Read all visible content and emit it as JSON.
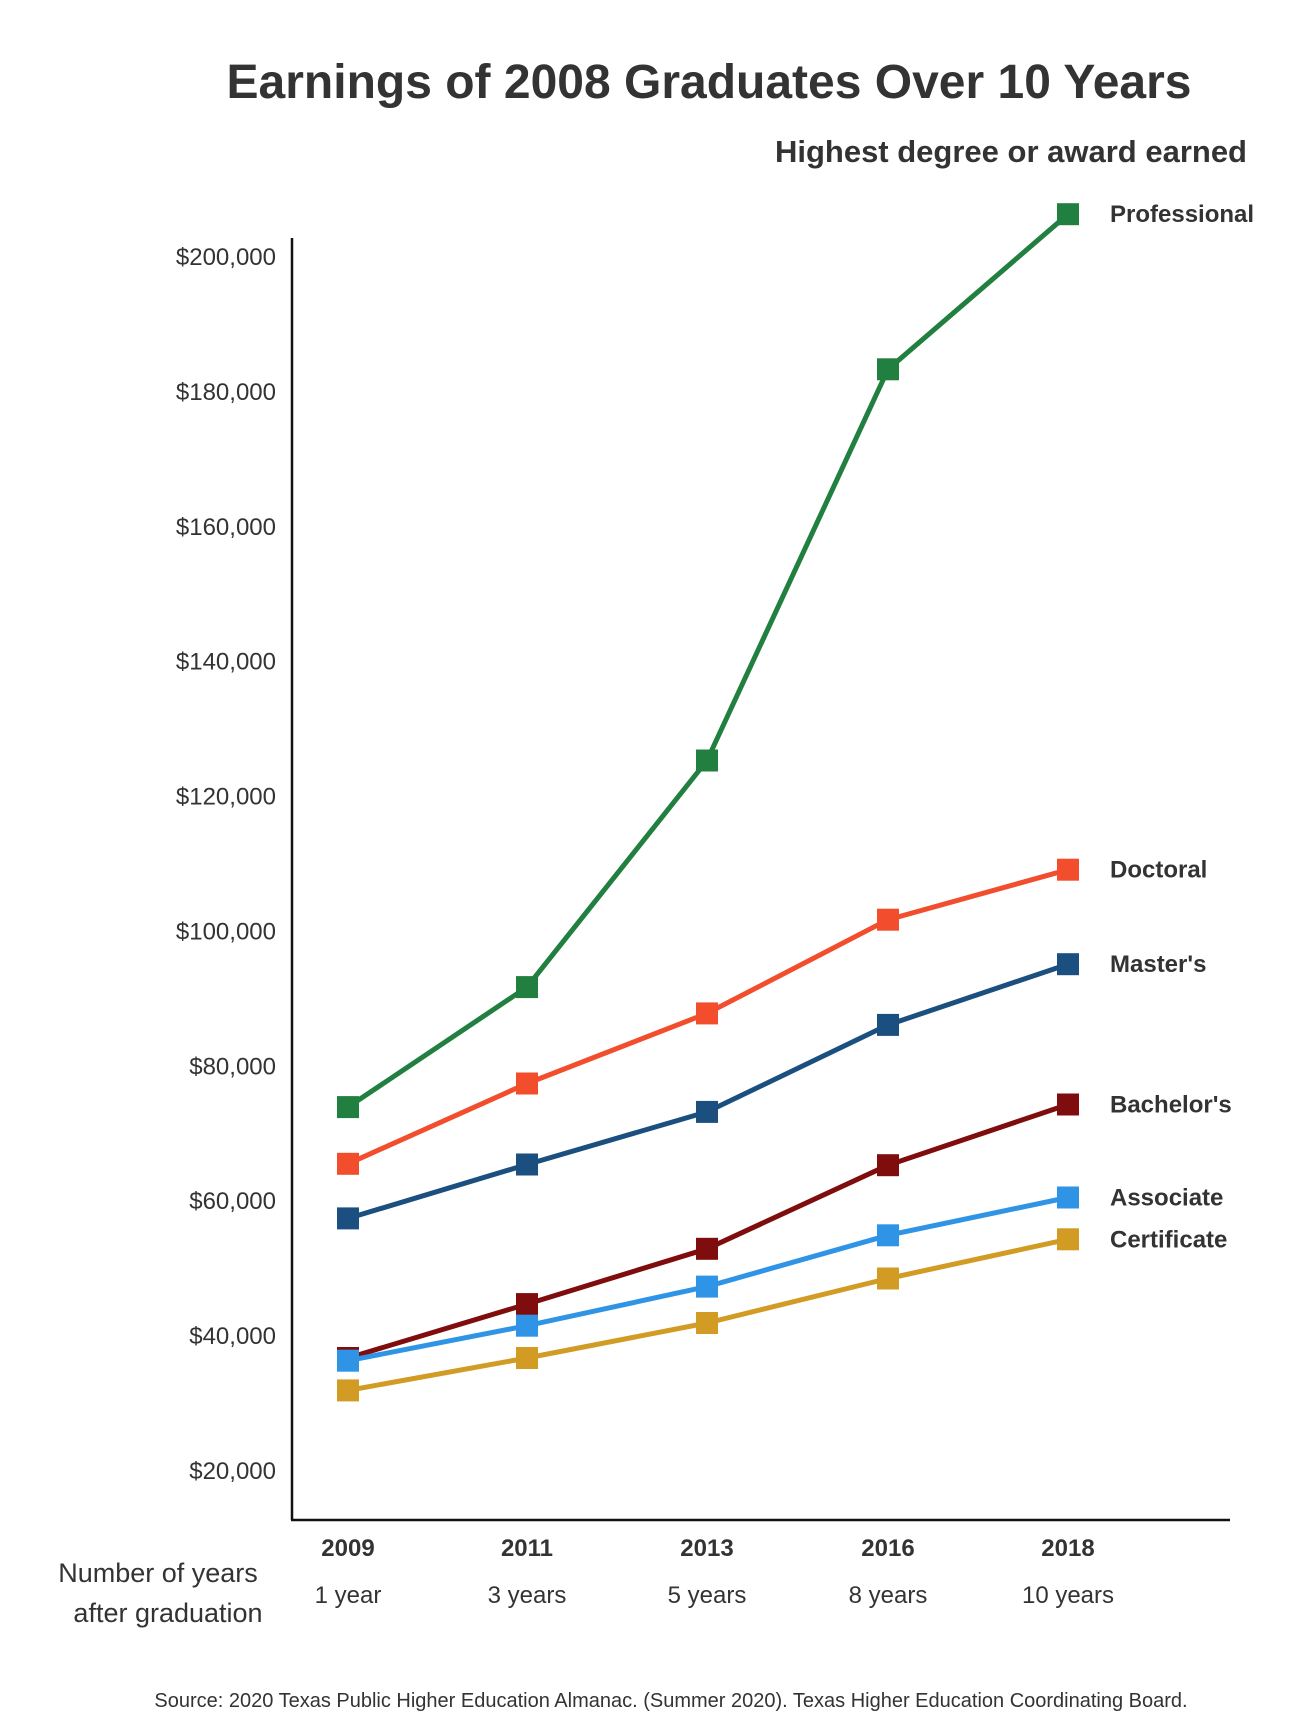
{
  "chart_data": {
    "type": "line",
    "title": "Earnings of 2008 Graduates Over 10 Years",
    "subtitle": "Highest degree or award earned",
    "xlabel_lines": [
      "Number of years",
      "after graduation"
    ],
    "ylabel": "",
    "ylim": [
      20000,
      200000
    ],
    "yticks": [
      20000,
      40000,
      60000,
      80000,
      100000,
      120000,
      140000,
      160000,
      180000,
      200000
    ],
    "ytick_labels": [
      "$20,000",
      "$40,000",
      "$60,000",
      "$80,000",
      "$100,000",
      "$120,000",
      "$140,000",
      "$160,000",
      "$180,000",
      "$200,000"
    ],
    "categories": [
      "2009",
      "2011",
      "2013",
      "2016",
      "2018"
    ],
    "category_sublabels": [
      "1 year",
      "3 years",
      "5 years",
      "8 years",
      "10 years"
    ],
    "marker": "square",
    "grid": false,
    "legend": "direct labels at line ends",
    "series": [
      {
        "name": "Professional",
        "color": "#217f3f",
        "values": [
          73800,
          91600,
          125200,
          183200,
          206200
        ]
      },
      {
        "name": "Doctoral",
        "color": "#f24e2e",
        "values": [
          65400,
          77300,
          87700,
          101600,
          109000
        ]
      },
      {
        "name": "Master's",
        "color": "#1b4f7f",
        "values": [
          57300,
          65300,
          73100,
          86000,
          95000
        ]
      },
      {
        "name": "Bachelor's",
        "color": "#800d0d",
        "values": [
          36600,
          44600,
          52800,
          65200,
          74200
        ]
      },
      {
        "name": "Associate",
        "color": "#3094e6",
        "values": [
          36200,
          41400,
          47200,
          54800,
          60400
        ]
      },
      {
        "name": "Certificate",
        "color": "#d19b24",
        "values": [
          31800,
          36600,
          41800,
          48400,
          54200
        ]
      }
    ],
    "source": "Source: 2020 Texas Public Higher Education Almanac. (Summer 2020). Texas Higher Education Coordinating Board."
  }
}
